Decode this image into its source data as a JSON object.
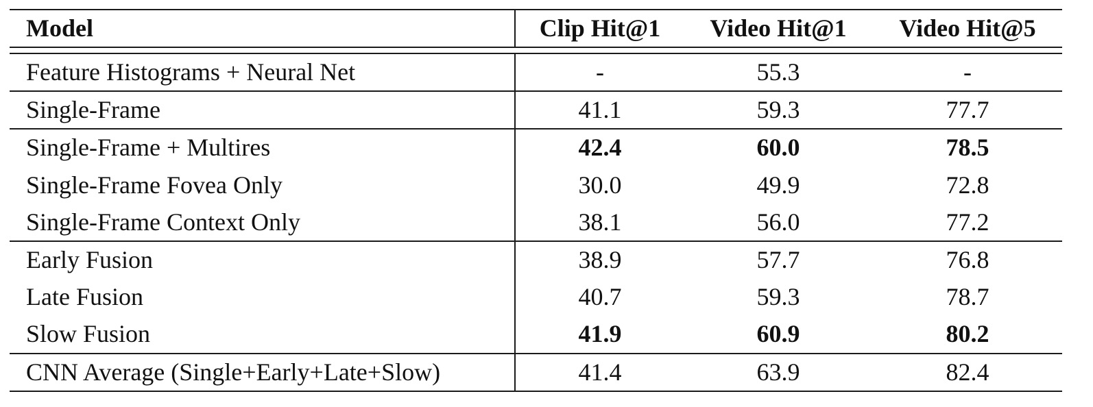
{
  "table": {
    "headers": [
      "Model",
      "Clip Hit@1",
      "Video Hit@1",
      "Video Hit@5"
    ],
    "rows": [
      {
        "model": "Feature Histograms + Neural Net",
        "clip_hit1": "-",
        "video_hit1": "55.3",
        "video_hit5": "-"
      },
      {
        "model": "Single-Frame",
        "clip_hit1": "41.1",
        "video_hit1": "59.3",
        "video_hit5": "77.7"
      },
      {
        "model": "Single-Frame + Multires",
        "clip_hit1": "42.4",
        "video_hit1": "60.0",
        "video_hit5": "78.5"
      },
      {
        "model": "Single-Frame Fovea Only",
        "clip_hit1": "30.0",
        "video_hit1": "49.9",
        "video_hit5": "72.8"
      },
      {
        "model": "Single-Frame Context Only",
        "clip_hit1": "38.1",
        "video_hit1": "56.0",
        "video_hit5": "77.2"
      },
      {
        "model": "Early Fusion",
        "clip_hit1": "38.9",
        "video_hit1": "57.7",
        "video_hit5": "76.8"
      },
      {
        "model": "Late Fusion",
        "clip_hit1": "40.7",
        "video_hit1": "59.3",
        "video_hit5": "78.7"
      },
      {
        "model": "Slow Fusion",
        "clip_hit1": "41.9",
        "video_hit1": "60.9",
        "video_hit5": "80.2"
      },
      {
        "model": "CNN Average (Single+Early+Late+Slow)",
        "clip_hit1": "41.4",
        "video_hit1": "63.9",
        "video_hit5": "82.4"
      }
    ],
    "bold_rows": [
      2,
      7
    ]
  }
}
